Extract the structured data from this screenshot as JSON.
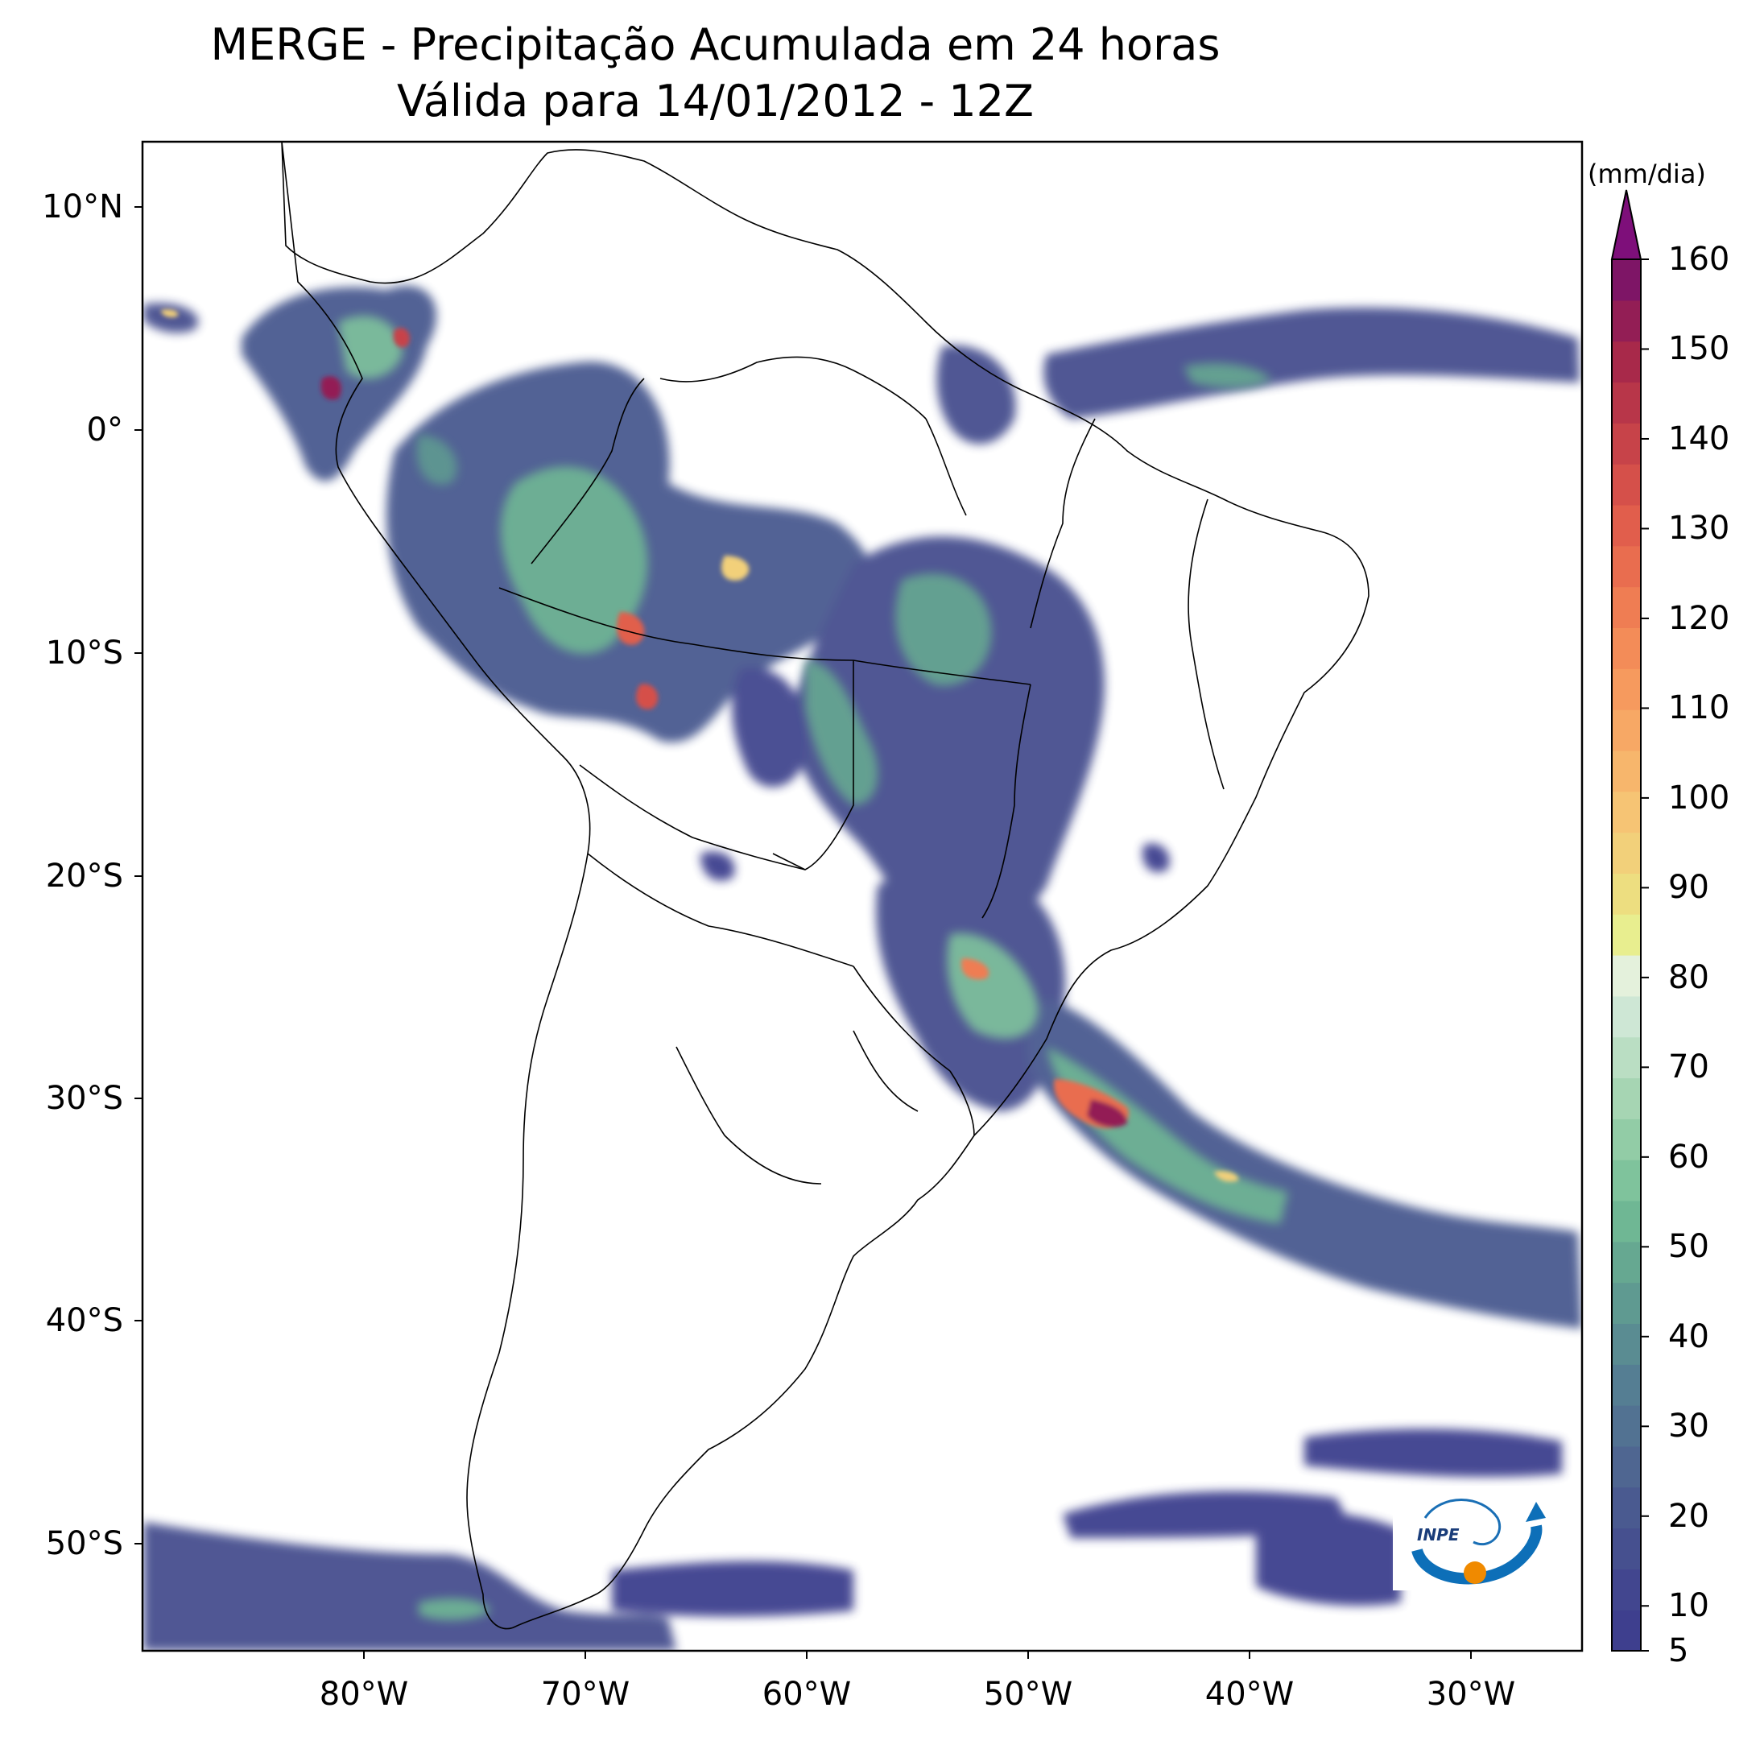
{
  "title": {
    "line1": "MERGE - Precipitação Acumulada em 24 horas",
    "line2": "Válida para 14/01/2012 - 12Z"
  },
  "map": {
    "extent": {
      "lon": [
        -90,
        -25
      ],
      "lat": [
        -56,
        13
      ]
    },
    "lat_ticks": [
      {
        "value": 10,
        "label": "10°N"
      },
      {
        "value": 0,
        "label": "0°"
      },
      {
        "value": -10,
        "label": "10°S"
      },
      {
        "value": -20,
        "label": "20°S"
      },
      {
        "value": -30,
        "label": "30°S"
      },
      {
        "value": -40,
        "label": "40°S"
      },
      {
        "value": -50,
        "label": "50°S"
      }
    ],
    "lon_ticks": [
      {
        "value": -80,
        "label": "80°W"
      },
      {
        "value": -70,
        "label": "70°W"
      },
      {
        "value": -60,
        "label": "60°W"
      },
      {
        "value": -50,
        "label": "50°W"
      },
      {
        "value": -40,
        "label": "40°W"
      },
      {
        "value": -30,
        "label": "30°W"
      }
    ],
    "logo_text": "INPE"
  },
  "colorbar": {
    "unit": "(mm/dia)",
    "min": 5,
    "max": 160,
    "extend": "max",
    "tick_labels": [
      "5",
      "10",
      "20",
      "30",
      "40",
      "50",
      "60",
      "70",
      "80",
      "90",
      "100",
      "110",
      "120",
      "130",
      "140",
      "150",
      "160"
    ],
    "colors": [
      "#3e3f8e",
      "#42468f",
      "#46508f",
      "#4a5a90",
      "#4f6691",
      "#527292",
      "#557e93",
      "#5a8c92",
      "#5f9a91",
      "#66a891",
      "#6fb794",
      "#7fc39c",
      "#92cca6",
      "#a6d5b3",
      "#badec3",
      "#cee7d5",
      "#e4f1dc",
      "#e8ee8f",
      "#edde80",
      "#f2d07a",
      "#f6c474",
      "#f7b66c",
      "#f7a865",
      "#f69a5e",
      "#f38c58",
      "#ef7d53",
      "#e96d4f",
      "#e15e4c",
      "#d5504a",
      "#c74349",
      "#b83649",
      "#a8294a",
      "#931e55",
      "#7e1566"
    ]
  }
}
